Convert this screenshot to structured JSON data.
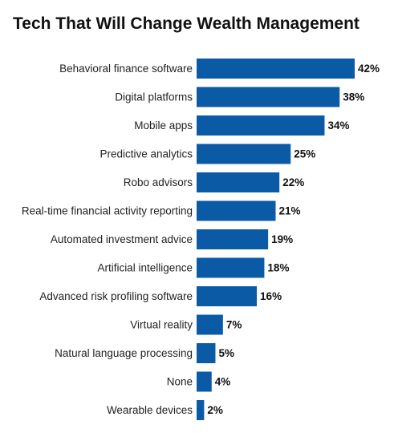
{
  "chart_data": {
    "type": "bar",
    "orientation": "horizontal",
    "title": "Tech That Will Change Wealth Management",
    "categories": [
      "Behavioral finance software",
      "Digital platforms",
      "Mobile apps",
      "Predictive analytics",
      "Robo advisors",
      "Real-time financial activity reporting",
      "Automated investment advice",
      "Artificial intelligence",
      "Advanced risk profiling software",
      "Virtual reality",
      "Natural language processing",
      "None",
      "Wearable devices"
    ],
    "values": [
      42,
      38,
      34,
      25,
      22,
      21,
      19,
      18,
      16,
      7,
      5,
      4,
      2
    ],
    "value_labels": [
      "42%",
      "38%",
      "34%",
      "25%",
      "22%",
      "21%",
      "19%",
      "18%",
      "16%",
      "7%",
      "5%",
      "4%",
      "2%"
    ],
    "xlim": [
      0,
      42
    ],
    "grid": false,
    "bar_color": "#0b5aa6"
  }
}
